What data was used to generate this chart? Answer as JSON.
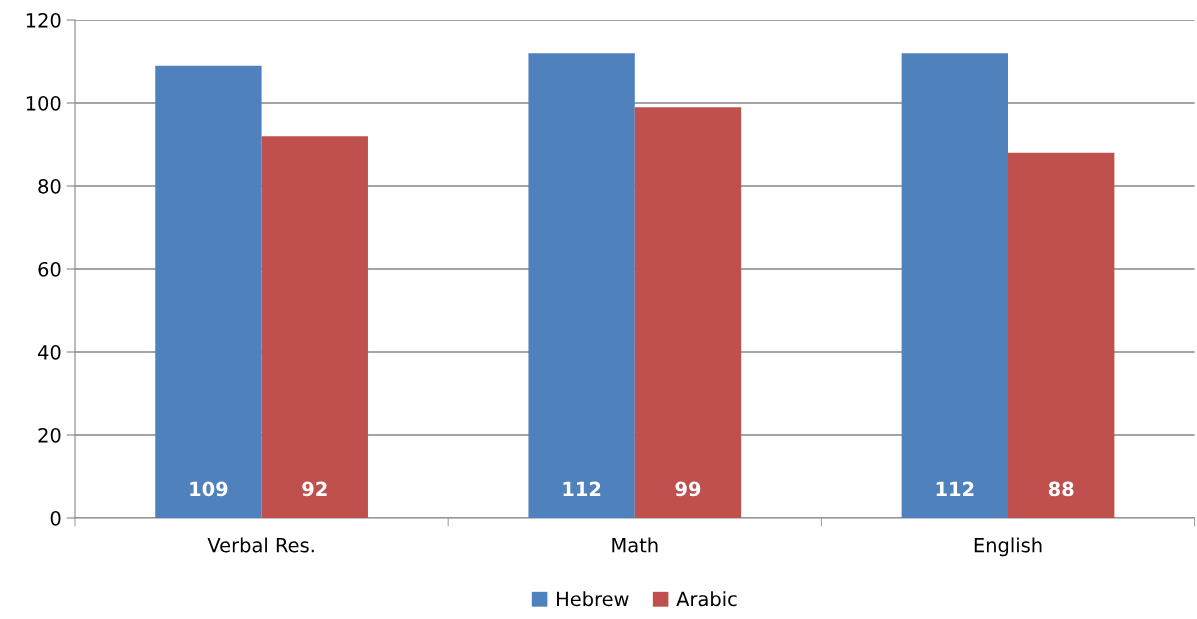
{
  "chart_data": {
    "type": "bar",
    "categories": [
      "Verbal Res.",
      "Math",
      "English"
    ],
    "series": [
      {
        "name": "Hebrew",
        "color": "#4f81bd",
        "values": [
          109,
          112,
          112
        ]
      },
      {
        "name": "Arabic",
        "color": "#c0504d",
        "values": [
          92,
          99,
          88
        ]
      }
    ],
    "ylim": [
      0,
      120
    ],
    "yticks": [
      0,
      20,
      40,
      60,
      80,
      100,
      120
    ],
    "grid": "y",
    "legend": "bottom",
    "data_labels": true
  }
}
